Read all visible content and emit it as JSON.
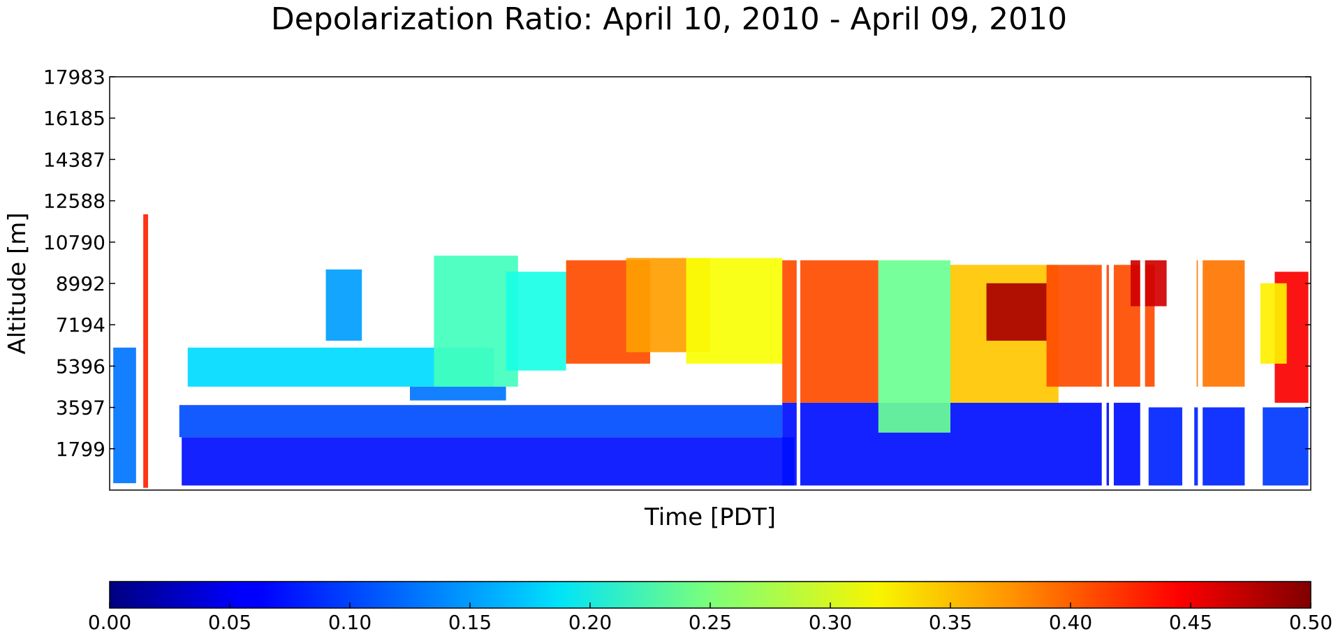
{
  "chart_data": {
    "type": "heatmap",
    "title": "Depolarization Ratio: April 10, 2010 - April 09, 2010",
    "xlabel": "Time [PDT]",
    "ylabel": "Altitude [m]",
    "ylim": [
      0,
      17983
    ],
    "y_ticks": [
      "17983",
      "16185",
      "14387",
      "12588",
      "10790",
      "8992",
      "7194",
      "5396",
      "3597",
      "1799"
    ],
    "y_tick_values": [
      17983,
      16185,
      14387,
      12588,
      10790,
      8992,
      7194,
      5396,
      3597,
      1799
    ],
    "colorbar": {
      "colormap": "jet",
      "range": [
        0.0,
        0.5
      ],
      "ticks": [
        "0.00",
        "0.05",
        "0.10",
        "0.15",
        "0.20",
        "0.25",
        "0.30",
        "0.35",
        "0.40",
        "0.45",
        "0.50"
      ]
    },
    "regions": [
      {
        "t0": 0.003,
        "t1": 0.022,
        "a0": 300,
        "a1": 6200,
        "value": 0.12
      },
      {
        "t0": 0.028,
        "t1": 0.032,
        "a0": 100,
        "a1": 12000,
        "value": 0.42
      },
      {
        "t0": 0.06,
        "t1": 0.57,
        "a0": 200,
        "a1": 2300,
        "value": 0.07
      },
      {
        "t0": 0.058,
        "t1": 0.56,
        "a0": 2300,
        "a1": 3700,
        "value": 0.1
      },
      {
        "t0": 0.065,
        "t1": 0.32,
        "a0": 4500,
        "a1": 6200,
        "value": 0.17
      },
      {
        "t0": 0.25,
        "t1": 0.33,
        "a0": 3900,
        "a1": 4500,
        "value": 0.12
      },
      {
        "t0": 0.56,
        "t1": 0.86,
        "a0": 200,
        "a1": 3800,
        "value": 0.07
      },
      {
        "t0": 0.865,
        "t1": 0.945,
        "a0": 200,
        "a1": 3600,
        "value": 0.08
      },
      {
        "t0": 0.96,
        "t1": 0.998,
        "a0": 200,
        "a1": 3600,
        "value": 0.09
      },
      {
        "t0": 0.18,
        "t1": 0.21,
        "a0": 6500,
        "a1": 9600,
        "value": 0.14
      },
      {
        "t0": 0.27,
        "t1": 0.34,
        "a0": 4500,
        "a1": 10200,
        "value": 0.22
      },
      {
        "t0": 0.33,
        "t1": 0.38,
        "a0": 5200,
        "a1": 9500,
        "value": 0.2
      },
      {
        "t0": 0.38,
        "t1": 0.45,
        "a0": 5500,
        "a1": 10000,
        "value": 0.4
      },
      {
        "t0": 0.43,
        "t1": 0.5,
        "a0": 6000,
        "a1": 10100,
        "value": 0.36
      },
      {
        "t0": 0.48,
        "t1": 0.56,
        "a0": 5500,
        "a1": 10100,
        "value": 0.31
      },
      {
        "t0": 0.56,
        "t1": 0.64,
        "a0": 3800,
        "a1": 10000,
        "value": 0.4
      },
      {
        "t0": 0.64,
        "t1": 0.7,
        "a0": 2500,
        "a1": 10000,
        "value": 0.24
      },
      {
        "t0": 0.7,
        "t1": 0.79,
        "a0": 3800,
        "a1": 9800,
        "value": 0.34
      },
      {
        "t0": 0.73,
        "t1": 0.78,
        "a0": 6500,
        "a1": 9000,
        "value": 0.48
      },
      {
        "t0": 0.78,
        "t1": 0.87,
        "a0": 4500,
        "a1": 9800,
        "value": 0.4
      },
      {
        "t0": 0.85,
        "t1": 0.88,
        "a0": 8000,
        "a1": 10000,
        "value": 0.46
      },
      {
        "t0": 0.905,
        "t1": 0.945,
        "a0": 4500,
        "a1": 10000,
        "value": 0.38
      },
      {
        "t0": 0.97,
        "t1": 0.998,
        "a0": 3800,
        "a1": 9500,
        "value": 0.44
      },
      {
        "t0": 0.955,
        "t1": 0.98,
        "a0": 5500,
        "a1": 9000,
        "value": 0.32
      }
    ],
    "gaps": [
      {
        "t0": 0.045,
        "t1": 0.055
      },
      {
        "t0": 0.572,
        "t1": 0.575
      },
      {
        "t0": 0.826,
        "t1": 0.83
      },
      {
        "t0": 0.832,
        "t1": 0.836
      },
      {
        "t0": 0.858,
        "t1": 0.862
      },
      {
        "t0": 0.893,
        "t1": 0.903
      },
      {
        "t0": 0.906,
        "t1": 0.91
      },
      {
        "t0": 0.946,
        "t1": 0.958
      }
    ]
  }
}
